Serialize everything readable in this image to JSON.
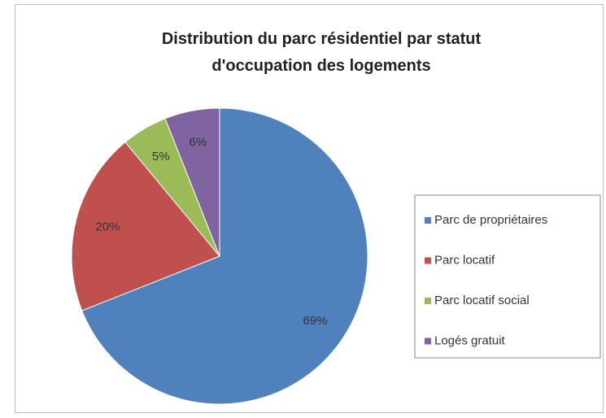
{
  "chart_data": {
    "type": "pie",
    "title": "Distribution du parc résidentiel par statut d'occupation des logements",
    "categories": [
      "Parc de propriétaires",
      "Parc locatif",
      "Parc locatif social",
      "Logés gratuit"
    ],
    "values": [
      69,
      20,
      5,
      6
    ],
    "value_labels": [
      "69%",
      "20%",
      "5%",
      "6%"
    ],
    "colors": [
      "#4f81bd",
      "#c0504d",
      "#9bbb59",
      "#8064a2"
    ],
    "legend": "right"
  }
}
